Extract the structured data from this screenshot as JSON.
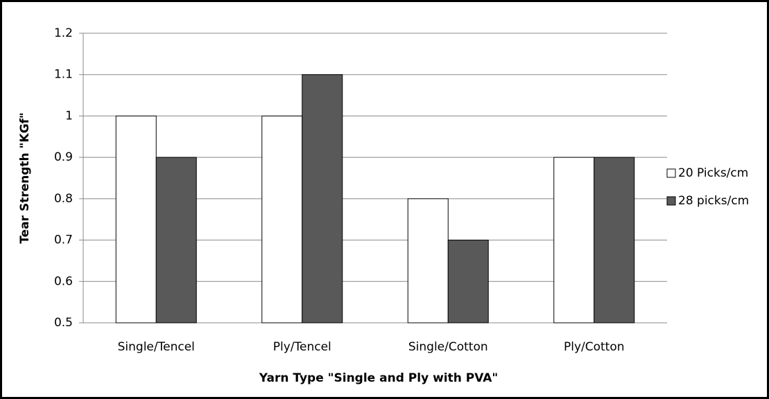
{
  "chart_data": {
    "type": "bar",
    "x_label": "Yarn Type \"Single and Ply with PVA\"",
    "y_label": "Tear Strength \"KGf\"",
    "categories": [
      "Single/Tencel",
      "Ply/Tencel",
      "Single/Cotton",
      "Ply/Cotton"
    ],
    "series": [
      {
        "name": "20 Picks/cm",
        "color": "#ffffff",
        "values": [
          1,
          1,
          0.8,
          0.9
        ]
      },
      {
        "name": "28 picks/cm",
        "color": "#595959",
        "values": [
          0.9,
          1.1,
          0.7,
          0.9
        ]
      }
    ],
    "ylim": [
      0.5,
      1.2
    ],
    "yticks": [
      0.5,
      0.6,
      0.7,
      0.8,
      0.9,
      1,
      1.1,
      1.2
    ],
    "grid": true,
    "legend": "right"
  }
}
